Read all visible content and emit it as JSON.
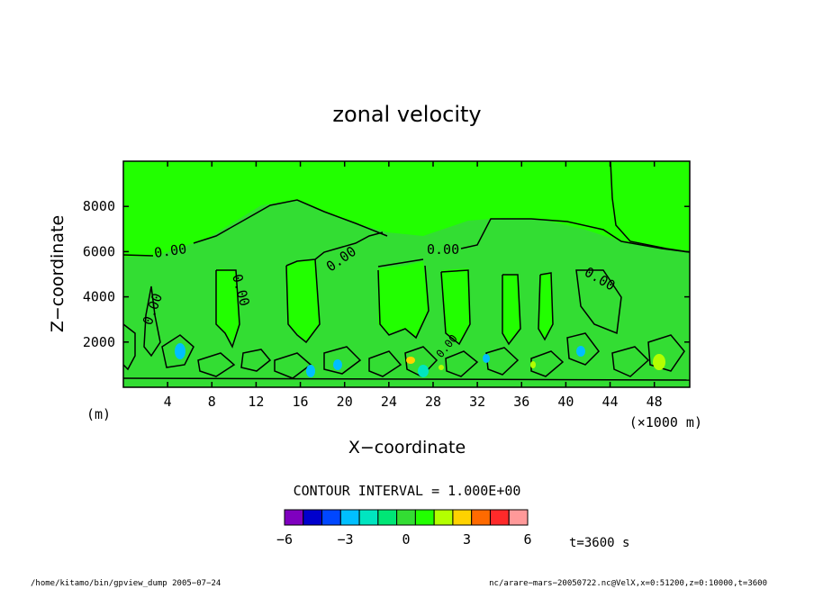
{
  "chart_data": {
    "type": "contour",
    "title": "zonal velocity",
    "xlabel": "X−coordinate",
    "ylabel": "Z−coordinate",
    "x_unit_left": "(m)",
    "x_unit_right": "(×1000 m)",
    "xlim": [
      0,
      51.2
    ],
    "ylim": [
      0,
      10000
    ],
    "x_ticks": [
      "4",
      "8",
      "12",
      "16",
      "20",
      "24",
      "28",
      "32",
      "36",
      "40",
      "44",
      "48"
    ],
    "y_ticks": [
      "2000",
      "4000",
      "6000",
      "8000"
    ],
    "contour_labels": [
      "0.00",
      "0.00",
      "0.00",
      "0.00",
      "0.00",
      "0.00",
      "0.00"
    ],
    "contour_interval_text": "CONTOUR INTERVAL = 1.000E+00",
    "colorbar": {
      "range": [
        -6,
        6
      ],
      "tick_labels": [
        "−6",
        "−3",
        "0",
        "3",
        "6"
      ],
      "colors": [
        "#7f00bf",
        "#0000cd",
        "#0047ff",
        "#00bfff",
        "#00e5c0",
        "#00e676",
        "#33dd33",
        "#22ff00",
        "#b3ff00",
        "#ffd200",
        "#ff6a00",
        "#ff2a2a",
        "#ff9999"
      ]
    },
    "time_text": "t=3600 s",
    "background_color": "#22ff00",
    "near_zero_color": "#33dd33"
  },
  "footer": {
    "left": "/home/kitamo/bin/gpview_dump  2005−07−24",
    "right": "nc/arare−mars−20050722.nc@VelX,x=0:51200,z=0:10000,t=3600"
  }
}
